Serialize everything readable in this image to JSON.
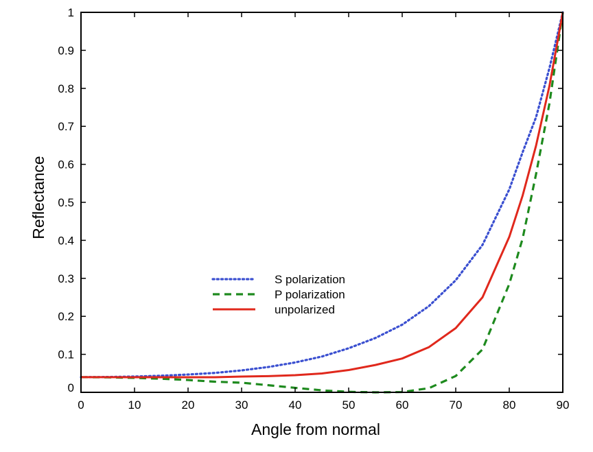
{
  "chart_data": {
    "type": "line",
    "title": "",
    "xlabel": "Angle from normal",
    "ylabel": "Reflectance",
    "xlim": [
      0,
      90
    ],
    "ylim": [
      0,
      1
    ],
    "xticks": [
      "0",
      "10",
      "20",
      "30",
      "40",
      "50",
      "60",
      "70",
      "80",
      "90"
    ],
    "yticks": [
      "0",
      "0.1",
      "0.2",
      "0.3",
      "0.4",
      "0.5",
      "0.6",
      "0.7",
      "0.8",
      "0.9",
      "1"
    ],
    "grid": false,
    "legend_position": "center-left",
    "x": [
      0,
      5,
      10,
      15,
      20,
      25,
      30,
      35,
      40,
      45,
      50,
      55,
      60,
      65,
      70,
      75,
      80,
      82.5,
      85,
      87.5,
      90
    ],
    "series": [
      {
        "name": "S polarization",
        "color": "#3a4fd0",
        "style": "dotted",
        "values": [
          0.04,
          0.0404,
          0.0416,
          0.0437,
          0.0469,
          0.0511,
          0.0577,
          0.0667,
          0.0786,
          0.0942,
          0.116,
          0.143,
          0.178,
          0.227,
          0.295,
          0.388,
          0.534,
          0.632,
          0.724,
          0.853,
          1.0
        ]
      },
      {
        "name": "P polarization",
        "color": "#1e8a1e",
        "style": "dashed",
        "values": [
          0.04,
          0.0394,
          0.038,
          0.0357,
          0.0324,
          0.028,
          0.0253,
          0.0187,
          0.0118,
          0.0052,
          0.0013,
          0.0,
          0.0008,
          0.011,
          0.043,
          0.113,
          0.285,
          0.405,
          0.574,
          0.76,
          1.0
        ]
      },
      {
        "name": "unpolarized",
        "color": "#e0281c",
        "style": "solid",
        "values": [
          0.04,
          0.0399,
          0.0398,
          0.0397,
          0.0397,
          0.0396,
          0.0415,
          0.0427,
          0.0452,
          0.0497,
          0.0587,
          0.072,
          0.089,
          0.119,
          0.169,
          0.25,
          0.409,
          0.518,
          0.649,
          0.806,
          1.0
        ]
      }
    ]
  }
}
